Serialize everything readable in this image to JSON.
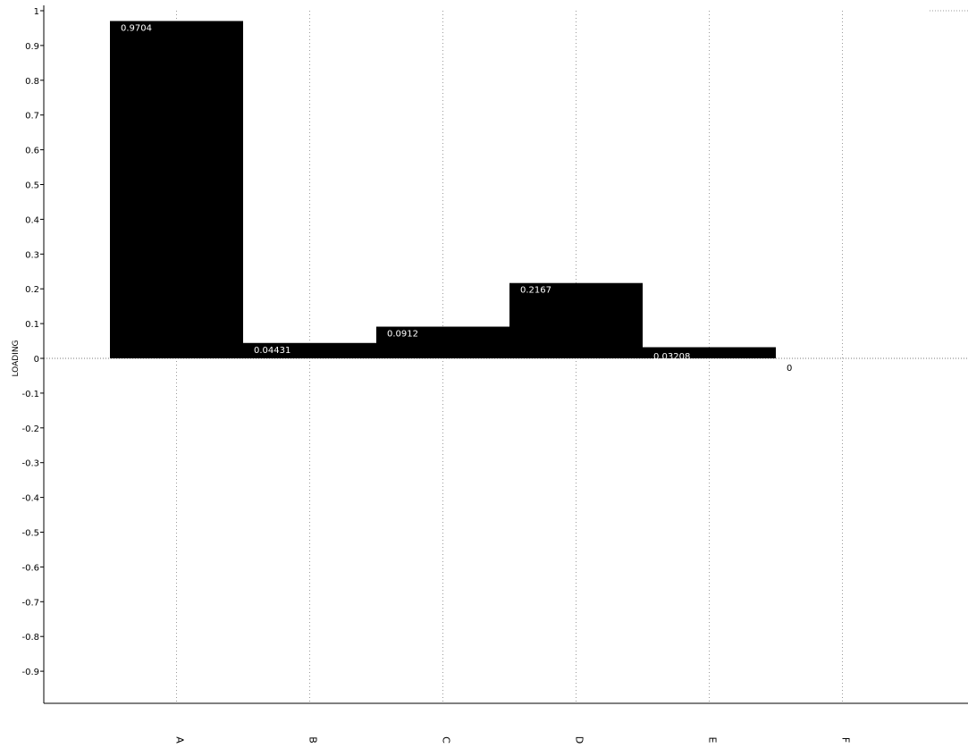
{
  "chart_data": {
    "type": "bar",
    "categories": [
      "A",
      "B",
      "C",
      "D",
      "E",
      "F"
    ],
    "values": [
      0.9704,
      0.04431,
      0.0912,
      0.2167,
      0.03208,
      0
    ],
    "value_labels": [
      "0.9704",
      "0.04431",
      "0.0912",
      "0.2167",
      "0.03208",
      "0"
    ],
    "title": "",
    "xlabel": "",
    "ylabel": "LOADING",
    "ylim": [
      -1,
      1
    ],
    "yticks": [
      1,
      0.9,
      0.8,
      0.7,
      0.6,
      0.5,
      0.4,
      0.3,
      0.2,
      0.1,
      0,
      -0.1,
      -0.2,
      -0.3,
      -0.4,
      -0.5,
      -0.6,
      -0.7,
      -0.8,
      -0.9
    ],
    "ytick_labels": [
      "1",
      "0.9",
      "0.8",
      "0.7",
      "0.6",
      "0.5",
      "0.4",
      "0.3",
      "0.2",
      "0.1",
      "0",
      "-0.1",
      "-0.2",
      "-0.3",
      "-0.4",
      "-0.5",
      "-0.6",
      "-0.7",
      "-0.8",
      "-0.9"
    ],
    "grid": true,
    "bar_color": "#000000",
    "data_label_color": "#ffffff"
  }
}
